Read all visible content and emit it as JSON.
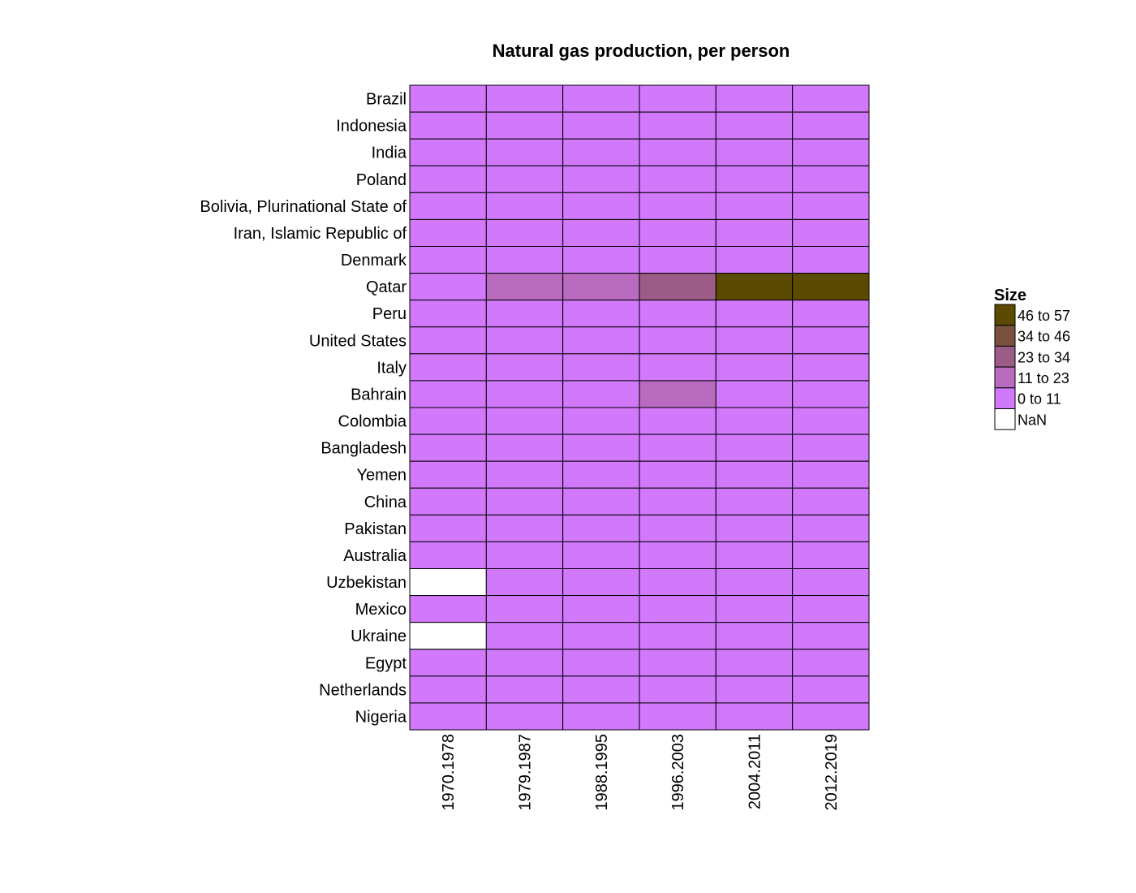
{
  "chart_data": {
    "type": "heatmap",
    "title": "Natural gas production, per person",
    "xlabel": "",
    "ylabel": "",
    "columns": [
      "1970.1978",
      "1979.1987",
      "1988.1995",
      "1996.2003",
      "2004.2011",
      "2012.2019"
    ],
    "rows": [
      "Brazil",
      "Indonesia",
      "India",
      "Poland",
      "Bolivia, Plurinational State of",
      "Iran, Islamic Republic of",
      "Denmark",
      "Qatar",
      "Peru",
      "United States",
      "Italy",
      "Bahrain",
      "Colombia",
      "Bangladesh",
      "Yemen",
      "China",
      "Pakistan",
      "Australia",
      "Uzbekistan",
      "Mexico",
      "Ukraine",
      "Egypt",
      "Netherlands",
      "Nigeria"
    ],
    "category_matrix": [
      [
        0,
        0,
        0,
        0,
        0,
        0
      ],
      [
        0,
        0,
        0,
        0,
        0,
        0
      ],
      [
        0,
        0,
        0,
        0,
        0,
        0
      ],
      [
        0,
        0,
        0,
        0,
        0,
        0
      ],
      [
        0,
        0,
        0,
        0,
        0,
        0
      ],
      [
        0,
        0,
        0,
        0,
        0,
        0
      ],
      [
        0,
        0,
        0,
        0,
        0,
        0
      ],
      [
        0,
        1,
        1,
        2,
        4,
        4
      ],
      [
        0,
        0,
        0,
        0,
        0,
        0
      ],
      [
        0,
        0,
        0,
        0,
        0,
        0
      ],
      [
        0,
        0,
        0,
        0,
        0,
        0
      ],
      [
        0,
        0,
        0,
        1,
        0,
        0
      ],
      [
        0,
        0,
        0,
        0,
        0,
        0
      ],
      [
        0,
        0,
        0,
        0,
        0,
        0
      ],
      [
        0,
        0,
        0,
        0,
        0,
        0
      ],
      [
        0,
        0,
        0,
        0,
        0,
        0
      ],
      [
        0,
        0,
        0,
        0,
        0,
        0
      ],
      [
        0,
        0,
        0,
        0,
        0,
        0
      ],
      [
        -1,
        0,
        0,
        0,
        0,
        0
      ],
      [
        0,
        0,
        0,
        0,
        0,
        0
      ],
      [
        -1,
        0,
        0,
        0,
        0,
        0
      ],
      [
        0,
        0,
        0,
        0,
        0,
        0
      ],
      [
        0,
        0,
        0,
        0,
        0,
        0
      ],
      [
        0,
        0,
        0,
        0,
        0,
        0
      ]
    ],
    "legend": {
      "title": "Size",
      "placement": "right",
      "bins": [
        {
          "label": "46  to  57",
          "color": "#5c4a00"
        },
        {
          "label": "34  to  46",
          "color": "#7a5240"
        },
        {
          "label": "23  to  34",
          "color": "#9c5c88"
        },
        {
          "label": "11  to  23",
          "color": "#b96bbf"
        },
        {
          "label": "0  to  11",
          "color": "#d178fb"
        },
        {
          "label": "NaN",
          "color": "#ffffff"
        }
      ]
    },
    "bin_colors": [
      "#d178fb",
      "#b96bbf",
      "#9c5c88",
      "#7a5240",
      "#5c4a00"
    ],
    "nan_color": "#ffffff",
    "grid": true
  }
}
